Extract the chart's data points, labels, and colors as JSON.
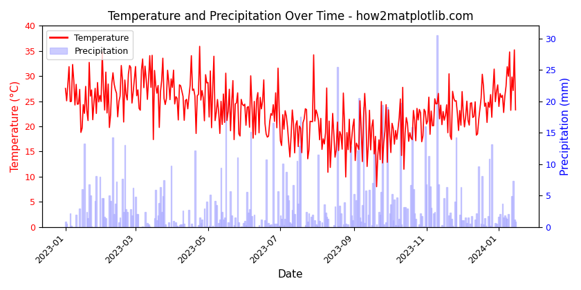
{
  "title": "Temperature and Precipitation Over Time - how2matplotlib.com",
  "xlabel": "Date",
  "ylabel_left": "Temperature (°C)",
  "ylabel_right": "Precipitation (mm)",
  "ylim_left": [
    0,
    40
  ],
  "ylim_right": [
    0,
    32
  ],
  "yticks_left": [
    0,
    5,
    10,
    15,
    20,
    25,
    30,
    35,
    40
  ],
  "yticks_right": [
    0,
    5,
    10,
    15,
    20,
    25,
    30
  ],
  "temp_color": "red",
  "precip_color": "#aaaaff",
  "line_width": 1.2,
  "legend_temp": "Temperature",
  "legend_precip": "Precipitation",
  "start_date": "2023-01-01",
  "end_date": "2024-01-15",
  "seed": 42,
  "figsize": [
    8.4,
    4.2
  ],
  "dpi": 100,
  "title_fontsize": 12,
  "label_fontsize": 11,
  "tick_fontsize": 9
}
